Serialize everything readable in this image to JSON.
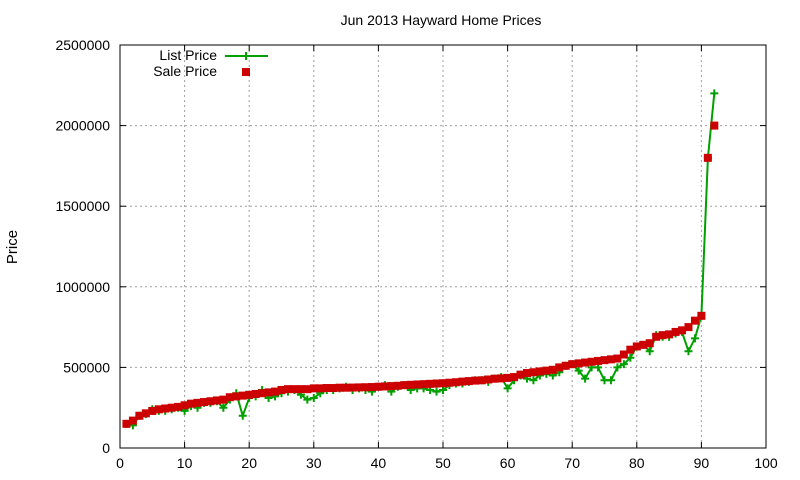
{
  "chart_data": {
    "type": "line",
    "title": "Jun 2013 Hayward Home Prices",
    "xlabel": "",
    "ylabel": "Price",
    "xlim": [
      0,
      100
    ],
    "ylim": [
      0,
      2500000
    ],
    "x_ticks": [
      0,
      10,
      20,
      30,
      40,
      50,
      60,
      70,
      80,
      90,
      100
    ],
    "y_ticks": [
      0,
      500000,
      1000000,
      1500000,
      2000000,
      2500000
    ],
    "grid": true,
    "legend_position": "top-left",
    "series": [
      {
        "name": "List Price",
        "style": "line-plus",
        "color": "#00a000",
        "x": [
          1,
          2,
          3,
          4,
          5,
          6,
          7,
          8,
          9,
          10,
          11,
          12,
          13,
          14,
          15,
          16,
          17,
          18,
          19,
          20,
          21,
          22,
          23,
          24,
          25,
          26,
          27,
          28,
          29,
          30,
          31,
          32,
          33,
          34,
          35,
          36,
          37,
          38,
          39,
          40,
          41,
          42,
          43,
          44,
          45,
          46,
          47,
          48,
          49,
          50,
          51,
          52,
          53,
          54,
          55,
          56,
          57,
          58,
          59,
          60,
          61,
          62,
          63,
          64,
          65,
          66,
          67,
          68,
          69,
          70,
          71,
          72,
          73,
          74,
          75,
          76,
          77,
          78,
          79,
          80,
          81,
          82,
          83,
          84,
          85,
          86,
          87,
          88,
          89,
          90,
          91,
          92
        ],
        "y": [
          150000,
          140000,
          200000,
          210000,
          240000,
          230000,
          230000,
          240000,
          250000,
          230000,
          260000,
          250000,
          280000,
          280000,
          290000,
          250000,
          300000,
          340000,
          200000,
          310000,
          320000,
          360000,
          310000,
          320000,
          340000,
          350000,
          360000,
          330000,
          300000,
          310000,
          340000,
          360000,
          360000,
          370000,
          380000,
          360000,
          370000,
          360000,
          350000,
          380000,
          390000,
          350000,
          380000,
          390000,
          360000,
          370000,
          370000,
          360000,
          350000,
          360000,
          390000,
          400000,
          400000,
          410000,
          420000,
          420000,
          410000,
          430000,
          440000,
          370000,
          420000,
          450000,
          430000,
          420000,
          450000,
          460000,
          450000,
          470000,
          510000,
          520000,
          480000,
          430000,
          500000,
          500000,
          420000,
          420000,
          500000,
          520000,
          560000,
          630000,
          640000,
          600000,
          700000,
          690000,
          690000,
          710000,
          720000,
          600000,
          680000,
          820000,
          1800000,
          2200000
        ]
      },
      {
        "name": "Sale Price",
        "style": "square-markers",
        "color": "#cc0000",
        "x": [
          1,
          2,
          3,
          4,
          5,
          6,
          7,
          8,
          9,
          10,
          11,
          12,
          13,
          14,
          15,
          16,
          17,
          18,
          19,
          20,
          21,
          22,
          23,
          24,
          25,
          26,
          27,
          28,
          29,
          30,
          31,
          32,
          33,
          34,
          35,
          36,
          37,
          38,
          39,
          40,
          41,
          42,
          43,
          44,
          45,
          46,
          47,
          48,
          49,
          50,
          51,
          52,
          53,
          54,
          55,
          56,
          57,
          58,
          59,
          60,
          61,
          62,
          63,
          64,
          65,
          66,
          67,
          68,
          69,
          70,
          71,
          72,
          73,
          74,
          75,
          76,
          77,
          78,
          79,
          80,
          81,
          82,
          83,
          84,
          85,
          86,
          87,
          88,
          89,
          90,
          91,
          92
        ],
        "y": [
          150000,
          170000,
          200000,
          215000,
          230000,
          240000,
          245000,
          250000,
          255000,
          265000,
          275000,
          280000,
          285000,
          290000,
          295000,
          300000,
          315000,
          320000,
          325000,
          330000,
          335000,
          340000,
          345000,
          350000,
          360000,
          365000,
          365000,
          365000,
          365000,
          370000,
          370000,
          372000,
          372000,
          374000,
          374000,
          375000,
          376000,
          377000,
          378000,
          380000,
          382000,
          384000,
          386000,
          390000,
          392000,
          394000,
          396000,
          398000,
          400000,
          402000,
          405000,
          408000,
          412000,
          415000,
          418000,
          420000,
          425000,
          430000,
          432000,
          435000,
          440000,
          455000,
          465000,
          470000,
          475000,
          480000,
          485000,
          500000,
          510000,
          520000,
          525000,
          530000,
          535000,
          540000,
          545000,
          550000,
          555000,
          580000,
          610000,
          630000,
          640000,
          650000,
          690000,
          700000,
          705000,
          720000,
          730000,
          750000,
          790000,
          820000,
          1800000,
          2000000
        ]
      }
    ]
  }
}
